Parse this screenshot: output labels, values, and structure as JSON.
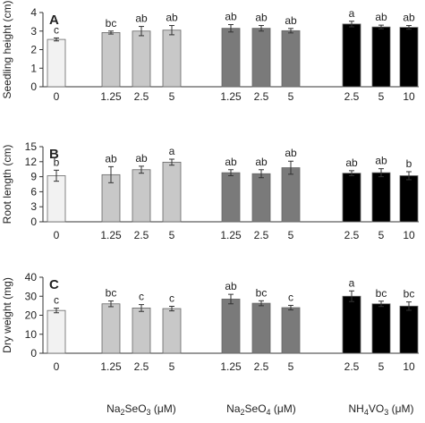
{
  "chart_data": [
    {
      "type": "bar",
      "panel_label": "A",
      "ylabel": "Seedling height (cm)",
      "ylim": [
        0,
        4
      ],
      "yticks": [
        0,
        1,
        2,
        3,
        4
      ],
      "tick_labels": [
        "0",
        "1.25",
        "2.5",
        "5",
        "1.25",
        "2.5",
        "5",
        "2.5",
        "5",
        "10"
      ],
      "values": [
        2.55,
        2.92,
        3.0,
        3.05,
        3.15,
        3.15,
        3.02,
        3.38,
        3.22,
        3.2
      ],
      "errors": [
        0.08,
        0.08,
        0.25,
        0.25,
        0.2,
        0.15,
        0.12,
        0.15,
        0.1,
        0.1
      ],
      "letters": [
        "c",
        "bc",
        "ab",
        "ab",
        "ab",
        "ab",
        "ab",
        "a",
        "ab",
        "ab"
      ]
    },
    {
      "type": "bar",
      "panel_label": "B",
      "ylabel": "Root length (cm)",
      "ylim": [
        0,
        15
      ],
      "yticks": [
        0,
        3,
        6,
        9,
        12,
        15
      ],
      "tick_labels": [
        "0",
        "1.25",
        "2.5",
        "5",
        "1.25",
        "2.5",
        "5",
        "2.5",
        "5",
        "10"
      ],
      "values": [
        9.2,
        9.4,
        10.4,
        11.9,
        9.8,
        9.6,
        10.8,
        9.7,
        9.8,
        9.2
      ],
      "errors": [
        1.1,
        1.6,
        0.7,
        0.6,
        0.6,
        0.8,
        1.3,
        0.5,
        0.8,
        0.8
      ],
      "letters": [
        "b",
        "ab",
        "ab",
        "a",
        "ab",
        "ab",
        "ab",
        "ab",
        "ab",
        "b"
      ]
    },
    {
      "type": "bar",
      "panel_label": "C",
      "ylabel": "Dry weight (mg)",
      "ylim": [
        0,
        40
      ],
      "yticks": [
        0,
        10,
        20,
        30,
        40
      ],
      "tick_labels": [
        "0",
        "1.25",
        "2.5",
        "5",
        "1.25",
        "2.5",
        "5",
        "2.5",
        "5",
        "10"
      ],
      "values": [
        22.5,
        26.0,
        23.8,
        23.5,
        28.5,
        26.3,
        24.0,
        30.0,
        26.0,
        24.8
      ],
      "errors": [
        1.2,
        1.5,
        1.8,
        1.2,
        2.5,
        1.3,
        1.2,
        2.8,
        1.4,
        2.2
      ],
      "letters": [
        "c",
        "bc",
        "c",
        "c",
        "ab",
        "bc",
        "c",
        "a",
        "bc",
        "bc"
      ]
    }
  ],
  "group_colors": [
    "#f2f2f2",
    "#c8c8c8",
    "#7a7a7a",
    "#000000"
  ],
  "bar_groups": [
    0,
    1,
    1,
    1,
    2,
    2,
    2,
    3,
    3,
    3
  ],
  "xgroup_labels": [
    {
      "base": "Na",
      "sub": "2",
      "mid": "SeO",
      "sub2": "3",
      "unit": " (μM)"
    },
    {
      "base": "Na",
      "sub": "2",
      "mid": "SeO",
      "sub2": "4",
      "unit": " (μM)"
    },
    {
      "base": "NH",
      "sub": "4",
      "mid": "VO",
      "sub2": "3",
      "unit": " (μM)"
    }
  ]
}
